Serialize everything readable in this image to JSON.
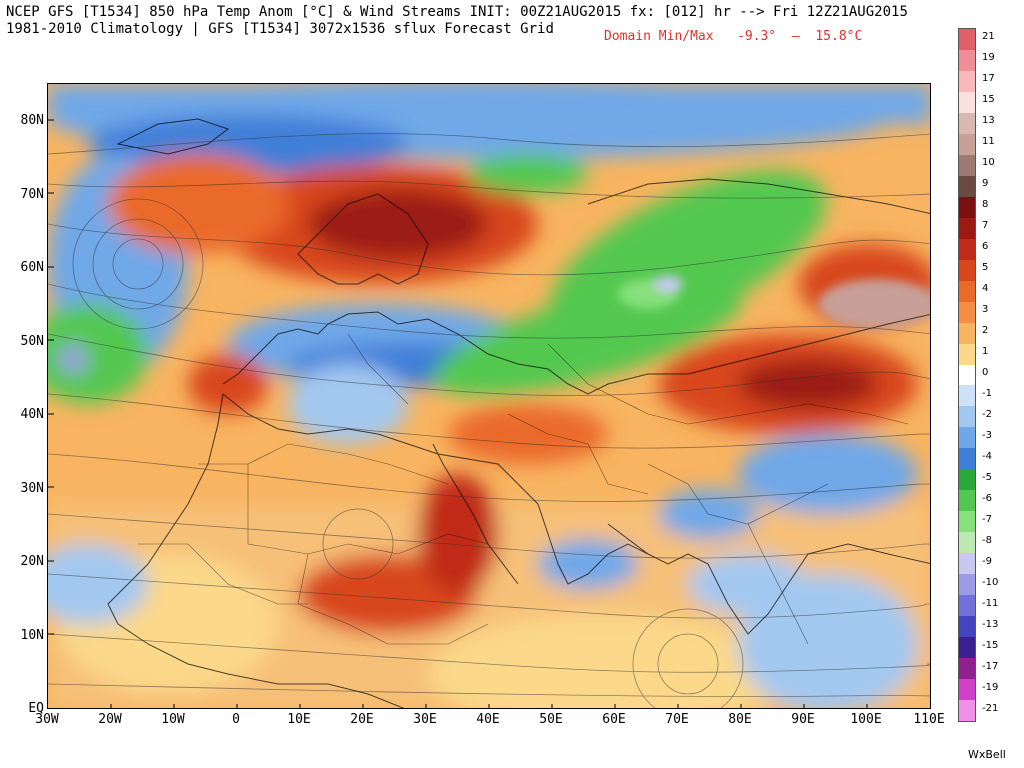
{
  "header": {
    "line1": "NCEP GFS [T1534] 850 hPa Temp Anom [°C] & Wind Streams INIT: 00Z21AUG2015 fx: [012] hr --> Fri 12Z21AUG2015",
    "line2": "1981-2010 Climatology | GFS [T1534] 3072x1536 sflux Forecast Grid",
    "domain_label": "Domain Min/Max",
    "domain_min": "-9.3°",
    "domain_sep": "–",
    "domain_max": "15.8°C"
  },
  "axes": {
    "lat_labels": [
      "80N",
      "70N",
      "60N",
      "50N",
      "40N",
      "30N",
      "20N",
      "10N",
      "EQ"
    ],
    "lon_labels": [
      "30W",
      "20W",
      "10W",
      "0",
      "10E",
      "20E",
      "30E",
      "40E",
      "50E",
      "60E",
      "70E",
      "80E",
      "90E",
      "100E",
      "110E"
    ]
  },
  "colorbar": {
    "labels": [
      "21",
      "19",
      "17",
      "15",
      "13",
      "11",
      "10",
      "9",
      "8",
      "7",
      "6",
      "5",
      "4",
      "3",
      "2",
      "1",
      "0",
      "-1",
      "-2",
      "-3",
      "-4",
      "-5",
      "-6",
      "-7",
      "-8",
      "-9",
      "-10",
      "-11",
      "-13",
      "-15",
      "-17",
      "-19",
      "-21"
    ],
    "colors": [
      "#e0606a",
      "#f08e98",
      "#f8b8bc",
      "#fbe0e0",
      "#d8b8b0",
      "#c8a098",
      "#9e7a72",
      "#6b4a44",
      "#7a1010",
      "#9c1a12",
      "#c02a18",
      "#d8461e",
      "#ea6a2a",
      "#f38e44",
      "#f8b460",
      "#fbd88a",
      "#ffffff",
      "#cde2f6",
      "#a3c8f0",
      "#6fa8e8",
      "#3f7fd8",
      "#2aa83a",
      "#52c850",
      "#86e07c",
      "#bde8b4",
      "#c8c8f0",
      "#9c9ce6",
      "#7070d8",
      "#4444c0",
      "#3a2090",
      "#90208e",
      "#d040c8",
      "#f090e8"
    ]
  },
  "brand": "WxBell"
}
